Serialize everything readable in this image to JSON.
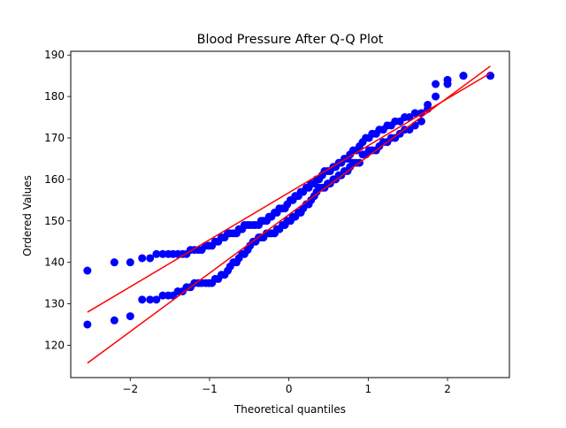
{
  "chart_data": {
    "type": "scatter",
    "title": "Blood Pressure After Q-Q Plot",
    "xlabel": "Theoretical quantiles",
    "ylabel": "Ordered Values",
    "xlim": [
      -2.75,
      2.78
    ],
    "ylim": [
      112.2,
      190.9
    ],
    "xticks": [
      -2,
      -1,
      0,
      1,
      2
    ],
    "yticks": [
      120,
      130,
      140,
      150,
      160,
      170,
      180,
      190
    ],
    "xtick_labels": [
      "−2",
      "−1",
      "0",
      "1",
      "2"
    ],
    "ytick_labels": [
      "120",
      "130",
      "140",
      "150",
      "160",
      "170",
      "180",
      "190"
    ],
    "grid": false,
    "colors": {
      "points": "#0000ff",
      "fit_line": "#ff0000"
    },
    "series": [
      {
        "points": [
          [
            -2.54,
            138
          ],
          [
            -2.2,
            140
          ],
          [
            -2.0,
            140
          ],
          [
            -1.85,
            141
          ],
          [
            -1.75,
            141
          ],
          [
            -1.67,
            142
          ],
          [
            -1.59,
            142
          ],
          [
            -1.52,
            142
          ],
          [
            -1.46,
            142
          ],
          [
            -1.4,
            142
          ],
          [
            -1.34,
            142
          ],
          [
            -1.29,
            142
          ],
          [
            -1.24,
            143
          ],
          [
            -1.19,
            143
          ],
          [
            -1.14,
            143
          ],
          [
            -1.1,
            143
          ],
          [
            -1.05,
            144
          ],
          [
            -1.01,
            144
          ],
          [
            -0.97,
            144
          ],
          [
            -0.93,
            145
          ],
          [
            -0.89,
            145
          ],
          [
            -0.85,
            146
          ],
          [
            -0.81,
            146
          ],
          [
            -0.77,
            147
          ],
          [
            -0.74,
            147
          ],
          [
            -0.7,
            147
          ],
          [
            -0.66,
            147
          ],
          [
            -0.63,
            148
          ],
          [
            -0.59,
            148
          ],
          [
            -0.56,
            149
          ],
          [
            -0.52,
            149
          ],
          [
            -0.49,
            149
          ],
          [
            -0.45,
            149
          ],
          [
            -0.42,
            149
          ],
          [
            -0.38,
            149
          ],
          [
            -0.35,
            150
          ],
          [
            -0.32,
            150
          ],
          [
            -0.28,
            150
          ],
          [
            -0.25,
            151
          ],
          [
            -0.22,
            151
          ],
          [
            -0.18,
            152
          ],
          [
            -0.15,
            152
          ],
          [
            -0.12,
            153
          ],
          [
            -0.08,
            153
          ],
          [
            -0.05,
            153
          ],
          [
            -0.02,
            154
          ],
          [
            0.02,
            155
          ],
          [
            0.05,
            155
          ],
          [
            0.08,
            156
          ],
          [
            0.12,
            156
          ],
          [
            0.15,
            157
          ],
          [
            0.18,
            157
          ],
          [
            0.22,
            158
          ],
          [
            0.25,
            158
          ],
          [
            0.28,
            159
          ],
          [
            0.32,
            159
          ],
          [
            0.35,
            160
          ],
          [
            0.38,
            160
          ],
          [
            0.42,
            161
          ],
          [
            0.45,
            162
          ],
          [
            0.49,
            162
          ],
          [
            0.52,
            162
          ],
          [
            0.56,
            163
          ],
          [
            0.59,
            163
          ],
          [
            0.63,
            164
          ],
          [
            0.66,
            164
          ],
          [
            0.7,
            165
          ],
          [
            0.74,
            165
          ],
          [
            0.77,
            166
          ],
          [
            0.81,
            167
          ],
          [
            0.85,
            167
          ],
          [
            0.89,
            168
          ],
          [
            0.93,
            169
          ],
          [
            0.97,
            170
          ],
          [
            1.01,
            170
          ],
          [
            1.05,
            171
          ],
          [
            1.1,
            171
          ],
          [
            1.14,
            172
          ],
          [
            1.19,
            172
          ],
          [
            1.24,
            173
          ],
          [
            1.29,
            173
          ],
          [
            1.34,
            174
          ],
          [
            1.4,
            174
          ],
          [
            1.46,
            175
          ],
          [
            1.52,
            175
          ],
          [
            1.59,
            176
          ],
          [
            1.67,
            176
          ],
          [
            1.75,
            177
          ],
          [
            1.85,
            183
          ],
          [
            2.0,
            184
          ],
          [
            2.2,
            185
          ],
          [
            2.54,
            185
          ]
        ],
        "fit": {
          "slope": 11.35,
          "intercept": 156.8
        }
      },
      {
        "points": [
          [
            -2.54,
            125
          ],
          [
            -2.2,
            126
          ],
          [
            -2.0,
            127
          ],
          [
            -1.85,
            131
          ],
          [
            -1.75,
            131
          ],
          [
            -1.67,
            131
          ],
          [
            -1.59,
            132
          ],
          [
            -1.52,
            132
          ],
          [
            -1.46,
            132
          ],
          [
            -1.4,
            133
          ],
          [
            -1.34,
            133
          ],
          [
            -1.29,
            134
          ],
          [
            -1.24,
            134
          ],
          [
            -1.19,
            135
          ],
          [
            -1.14,
            135
          ],
          [
            -1.1,
            135
          ],
          [
            -1.05,
            135
          ],
          [
            -1.01,
            135
          ],
          [
            -0.97,
            135
          ],
          [
            -0.93,
            136
          ],
          [
            -0.89,
            136
          ],
          [
            -0.85,
            137
          ],
          [
            -0.81,
            137
          ],
          [
            -0.77,
            138
          ],
          [
            -0.74,
            139
          ],
          [
            -0.7,
            140
          ],
          [
            -0.66,
            140
          ],
          [
            -0.63,
            141
          ],
          [
            -0.59,
            142
          ],
          [
            -0.56,
            142
          ],
          [
            -0.52,
            143
          ],
          [
            -0.49,
            144
          ],
          [
            -0.45,
            145
          ],
          [
            -0.42,
            145
          ],
          [
            -0.38,
            146
          ],
          [
            -0.35,
            146
          ],
          [
            -0.32,
            146
          ],
          [
            -0.28,
            147
          ],
          [
            -0.25,
            147
          ],
          [
            -0.22,
            147
          ],
          [
            -0.18,
            147
          ],
          [
            -0.15,
            148
          ],
          [
            -0.12,
            148
          ],
          [
            -0.08,
            149
          ],
          [
            -0.05,
            149
          ],
          [
            -0.02,
            150
          ],
          [
            0.02,
            150
          ],
          [
            0.05,
            151
          ],
          [
            0.08,
            151
          ],
          [
            0.12,
            152
          ],
          [
            0.15,
            152
          ],
          [
            0.18,
            153
          ],
          [
            0.22,
            154
          ],
          [
            0.25,
            154
          ],
          [
            0.28,
            155
          ],
          [
            0.32,
            156
          ],
          [
            0.35,
            157
          ],
          [
            0.38,
            158
          ],
          [
            0.42,
            158
          ],
          [
            0.45,
            158
          ],
          [
            0.49,
            159
          ],
          [
            0.52,
            159
          ],
          [
            0.56,
            160
          ],
          [
            0.59,
            160
          ],
          [
            0.63,
            161
          ],
          [
            0.66,
            161
          ],
          [
            0.7,
            162
          ],
          [
            0.74,
            162
          ],
          [
            0.77,
            163
          ],
          [
            0.81,
            164
          ],
          [
            0.85,
            164
          ],
          [
            0.89,
            164
          ],
          [
            0.93,
            166
          ],
          [
            0.97,
            166
          ],
          [
            1.01,
            167
          ],
          [
            1.05,
            167
          ],
          [
            1.1,
            167
          ],
          [
            1.14,
            168
          ],
          [
            1.19,
            169
          ],
          [
            1.24,
            169
          ],
          [
            1.29,
            170
          ],
          [
            1.34,
            170
          ],
          [
            1.4,
            171
          ],
          [
            1.46,
            172
          ],
          [
            1.52,
            172
          ],
          [
            1.59,
            173
          ],
          [
            1.67,
            174
          ],
          [
            1.75,
            178
          ],
          [
            1.85,
            180
          ],
          [
            2.0,
            183
          ],
          [
            2.2,
            185
          ],
          [
            2.54,
            185
          ]
        ],
        "fit": {
          "slope": 14.1,
          "intercept": 151.5
        }
      }
    ]
  }
}
